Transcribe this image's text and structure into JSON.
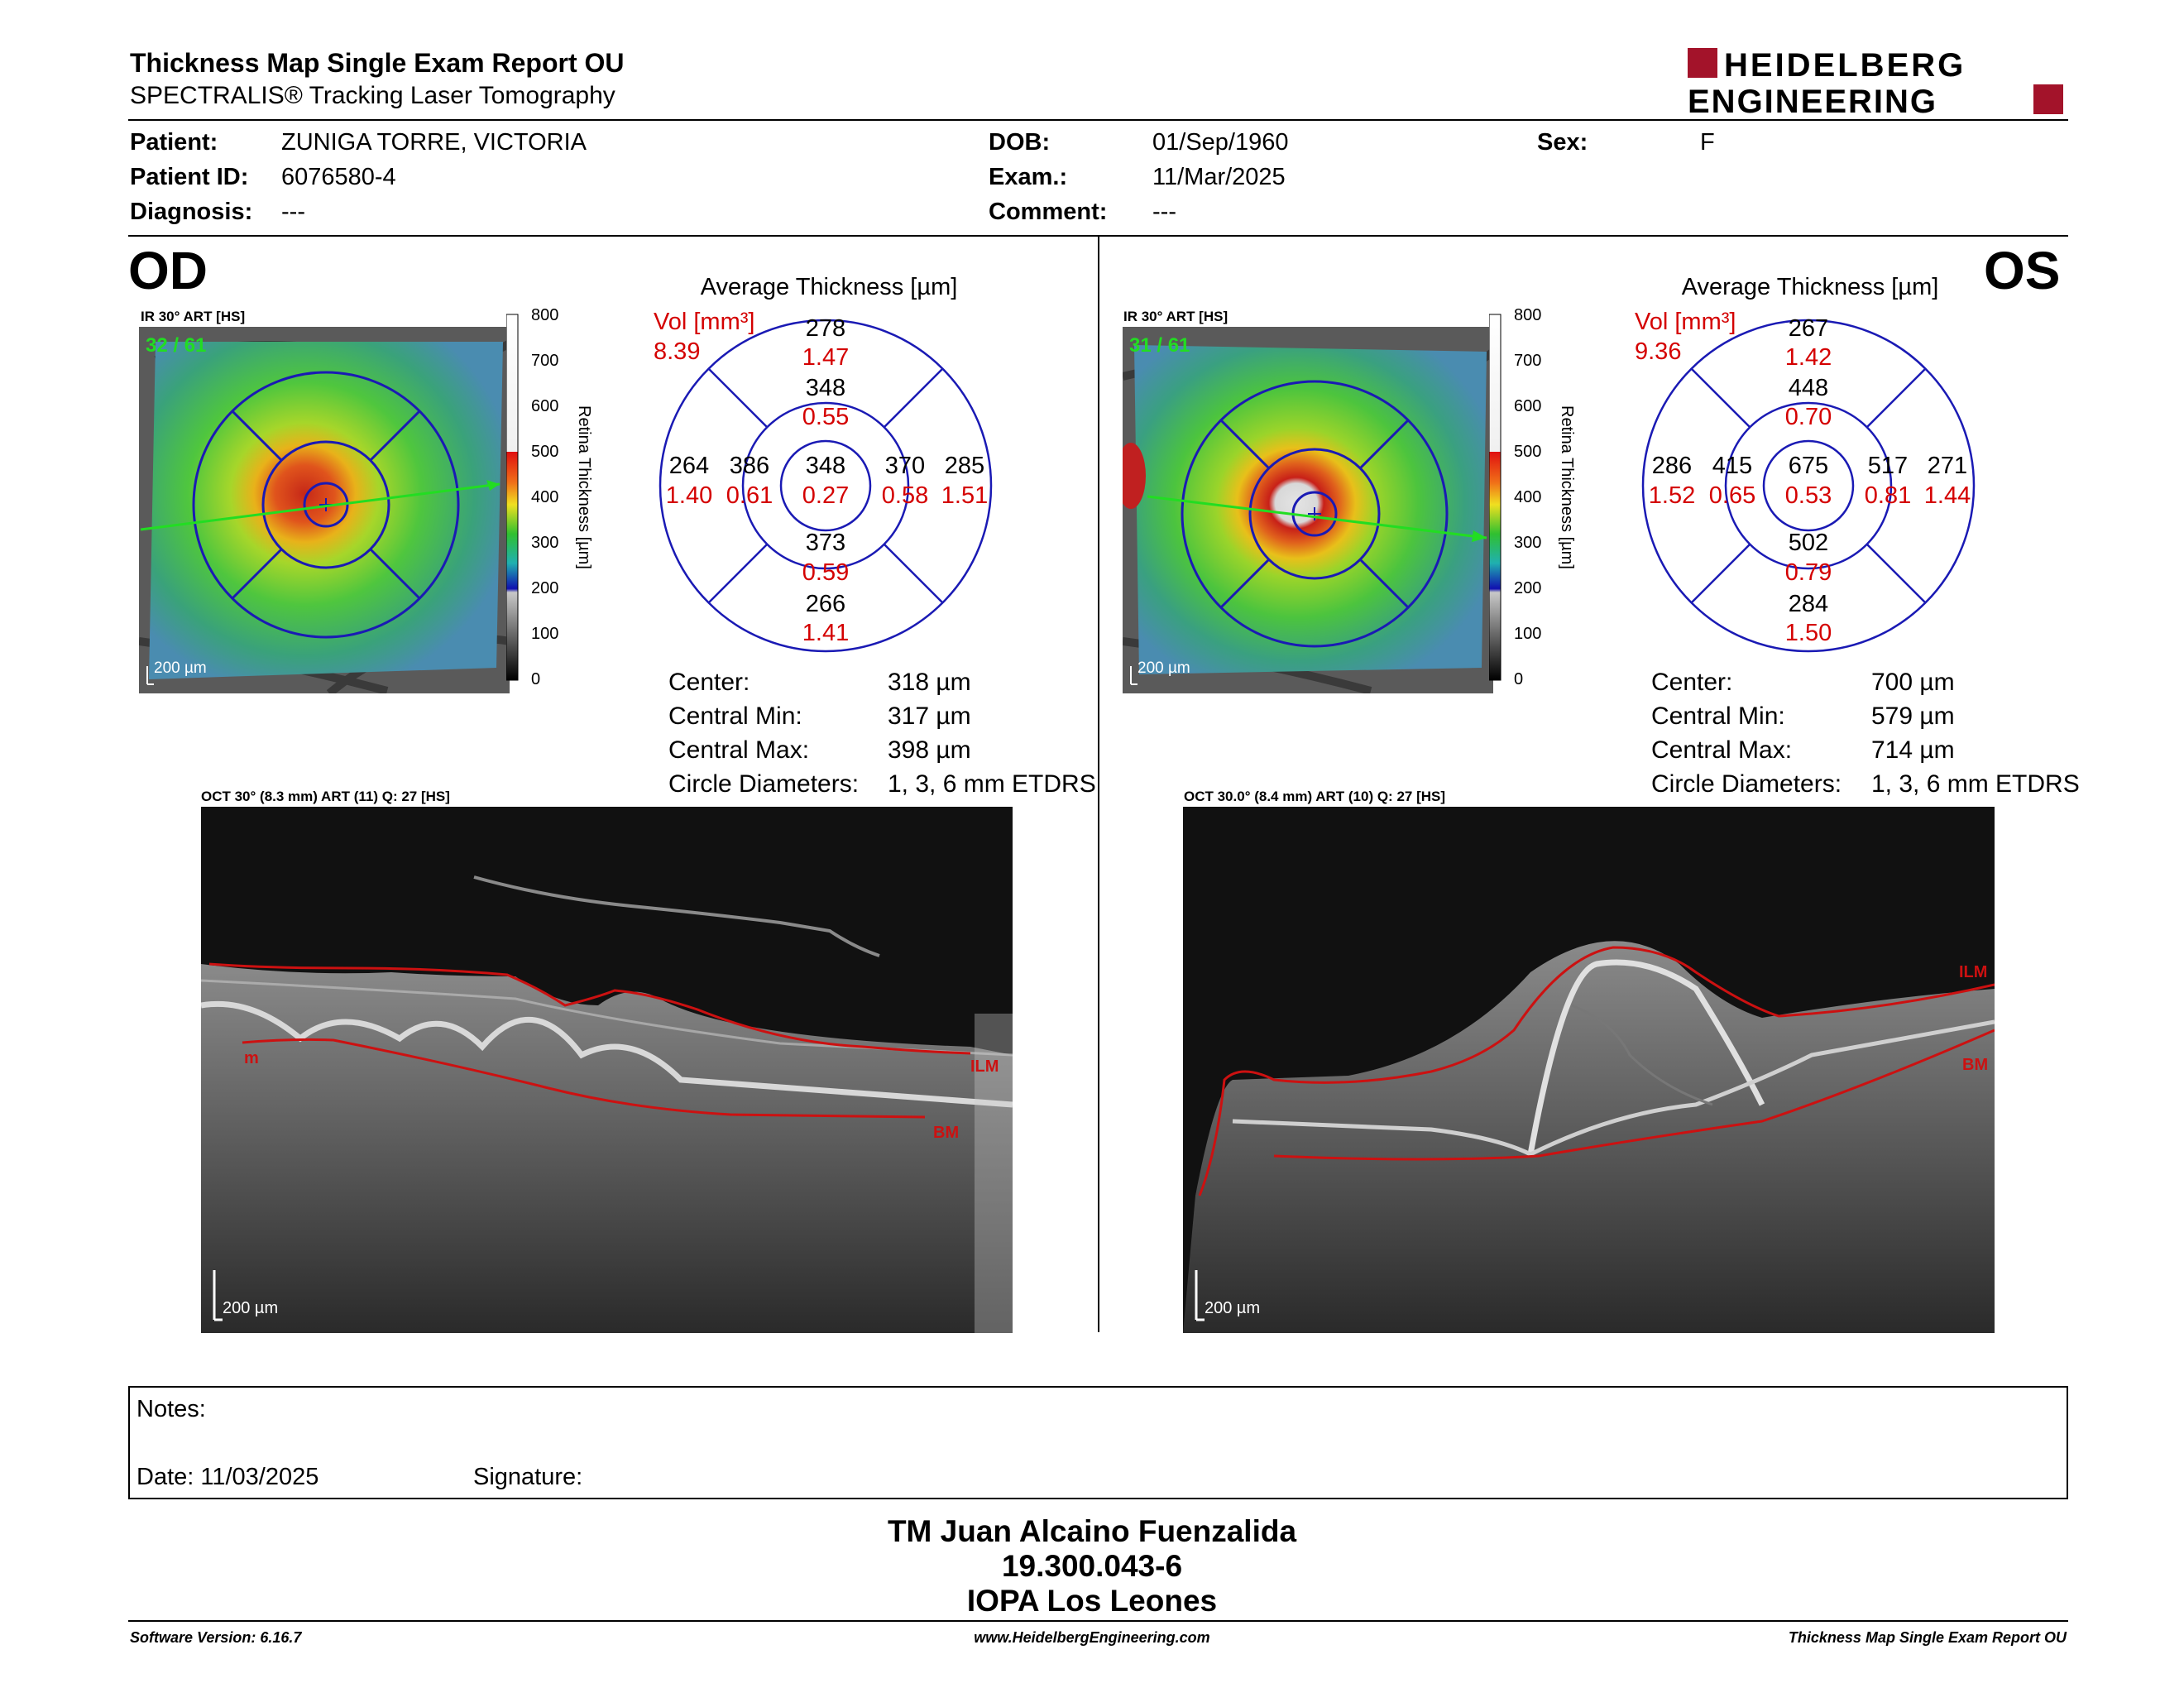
{
  "header": {
    "title": "Thickness Map Single Exam Report OU",
    "subtitle": "SPECTRALIS® Tracking Laser Tomography",
    "logo_line1": "HEIDELBERG",
    "logo_line2": "ENGINEERING"
  },
  "patient": {
    "patient_label": "Patient:",
    "patient_value": "ZUNIGA TORRE, VICTORIA",
    "id_label": "Patient ID:",
    "id_value": "6076580-4",
    "diagnosis_label": "Diagnosis:",
    "diagnosis_value": "---",
    "dob_label": "DOB:",
    "dob_value": "01/Sep/1960",
    "exam_label": "Exam.:",
    "exam_value": "11/Mar/2025",
    "comment_label": "Comment:",
    "comment_value": "---",
    "sex_label": "Sex:",
    "sex_value": "F"
  },
  "od": {
    "eye": "OD",
    "ir_label": "IR 30° ART [HS]",
    "frames": "32 / 61",
    "scale_bar": "200 µm",
    "colorbar_ticks": [
      "800",
      "700",
      "600",
      "500",
      "400",
      "300",
      "200",
      "100",
      "0"
    ],
    "colorbar_title": "Retina Thickness [µm]",
    "avg_title": "Average Thickness [µm]",
    "vol_label": "Vol [mm³]",
    "vol_value": "8.39",
    "sectors": {
      "center": {
        "t": "348",
        "v": "0.27"
      },
      "inner_sup": {
        "t": "348",
        "v": "0.55"
      },
      "inner_inf": {
        "t": "373",
        "v": "0.59"
      },
      "inner_left": {
        "t": "386",
        "v": "0.61"
      },
      "inner_right": {
        "t": "370",
        "v": "0.58"
      },
      "outer_sup": {
        "t": "278",
        "v": "1.47"
      },
      "outer_inf": {
        "t": "266",
        "v": "1.41"
      },
      "outer_left": {
        "t": "264",
        "v": "1.40"
      },
      "outer_right": {
        "t": "285",
        "v": "1.51"
      }
    },
    "stats": {
      "center_label": "Center:",
      "center_value": "318 µm",
      "min_label": "Central Min:",
      "min_value": "317 µm",
      "max_label": "Central Max:",
      "max_value": "398 µm",
      "diam_label": "Circle Diameters:",
      "diam_value": "1, 3, 6 mm ETDRS"
    },
    "oct_label": "OCT 30° (8.3 mm) ART (11) Q: 27 [HS]",
    "oct_scale": "200 µm",
    "layer_top": "ILM",
    "layer_bottom": "BM",
    "layer_left": "m"
  },
  "os": {
    "eye": "OS",
    "ir_label": "IR 30° ART [HS]",
    "frames": "31 / 61",
    "scale_bar": "200 µm",
    "colorbar_ticks": [
      "800",
      "700",
      "600",
      "500",
      "400",
      "300",
      "200",
      "100",
      "0"
    ],
    "colorbar_title": "Retina Thickness [µm]",
    "avg_title": "Average Thickness [µm]",
    "vol_label": "Vol [mm³]",
    "vol_value": "9.36",
    "sectors": {
      "center": {
        "t": "675",
        "v": "0.53"
      },
      "inner_sup": {
        "t": "448",
        "v": "0.70"
      },
      "inner_inf": {
        "t": "502",
        "v": "0.79"
      },
      "inner_left": {
        "t": "415",
        "v": "0.65"
      },
      "inner_right": {
        "t": "517",
        "v": "0.81"
      },
      "outer_sup": {
        "t": "267",
        "v": "1.42"
      },
      "outer_inf": {
        "t": "284",
        "v": "1.50"
      },
      "outer_left": {
        "t": "286",
        "v": "1.52"
      },
      "outer_right": {
        "t": "271",
        "v": "1.44"
      }
    },
    "stats": {
      "center_label": "Center:",
      "center_value": "700 µm",
      "min_label": "Central Min:",
      "min_value": "579 µm",
      "max_label": "Central Max:",
      "max_value": "714 µm",
      "diam_label": "Circle Diameters:",
      "diam_value": "1, 3, 6 mm ETDRS"
    },
    "oct_label": "OCT 30.0° (8.4 mm) ART (10) Q: 27 [HS]",
    "oct_scale": "200 µm",
    "layer_top": "ILM",
    "layer_bottom": "BM"
  },
  "notes": {
    "notes_label": "Notes:",
    "date_label": "Date: 11/03/2025",
    "signature_label": "Signature:"
  },
  "signer": {
    "name": "TM Juan Alcaino Fuenzalida",
    "id": "19.300.043-6",
    "org": "IOPA Los Leones"
  },
  "footer": {
    "software": "Software Version: 6.16.7",
    "website": "www.HeidelbergEngineering.com",
    "report": "Thickness Map Single Exam Report OU"
  },
  "colors": {
    "ring_blue": "#1a1ab4",
    "vol_red": "#d40000",
    "layer_red": "#cc1111",
    "frame_green": "#22dd22",
    "logo_red": "#a3132a"
  }
}
